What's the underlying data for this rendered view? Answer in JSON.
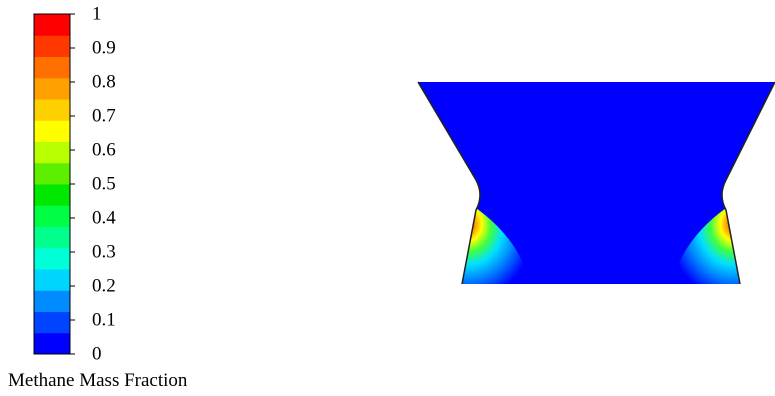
{
  "legend": {
    "title": "Methane Mass Fraction",
    "ticks": [
      "0",
      "0.1",
      "0.2",
      "0.3",
      "0.4",
      "0.5",
      "0.6",
      "0.7",
      "0.8",
      "0.9",
      "1"
    ],
    "min": 0,
    "max": 1,
    "colors": [
      "#0000ff",
      "#0044ff",
      "#008cff",
      "#00d5ff",
      "#00ffd8",
      "#00ff8c",
      "#00ff44",
      "#00e800",
      "#5cf000",
      "#b8ff00",
      "#ffff00",
      "#ffd000",
      "#ffa000",
      "#ff7000",
      "#ff3800",
      "#ff0000"
    ]
  },
  "contour": {
    "bulk_value": 0,
    "bulk_color": "#0000ff",
    "peak_color": "#ff0000"
  }
}
